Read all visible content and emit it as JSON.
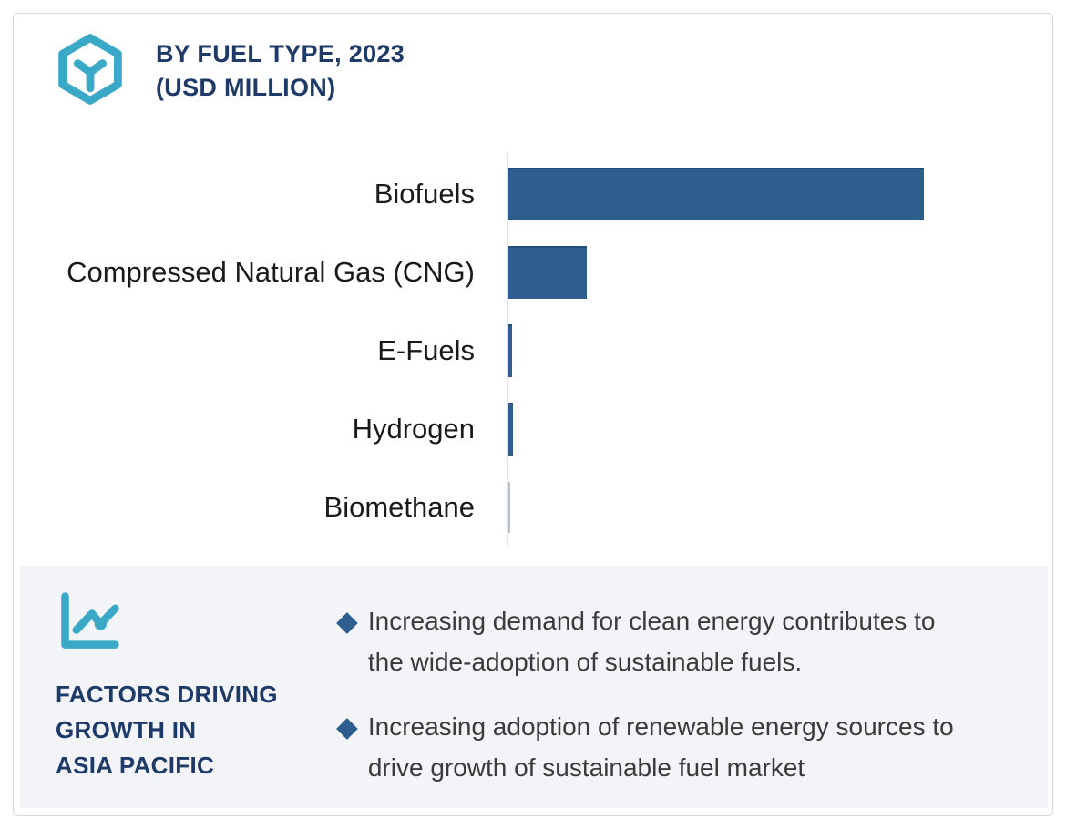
{
  "header": {
    "title_line1": "BY FUEL TYPE, 2023",
    "title_line2": "(USD MILLION)"
  },
  "chart_data": {
    "type": "bar",
    "orientation": "horizontal",
    "title": "BY FUEL TYPE, 2023 (USD MILLION)",
    "categories": [
      "Biofuels",
      "Compressed Natural Gas (CNG)",
      "E-Fuels",
      "Hydrogen",
      "Biomethane"
    ],
    "values_relative_pct_of_max": [
      100,
      18.9,
      0.9,
      1.1,
      0.4
    ],
    "value_labels_shown": false,
    "axis_tick_labels_shown": false,
    "grid": false,
    "legend": "none",
    "note": "no numeric scale or data labels are visible; values estimated from relative bar lengths, Biofuels = 100"
  },
  "factors_panel": {
    "heading_lines": [
      "FACTORS DRIVING",
      "GROWTH IN",
      "ASIA PACIFIC"
    ],
    "bullet_marker": "◆",
    "bullets": [
      "Increasing demand for clean energy contributes to\nthe wide-adoption of sustainable fuels.",
      "Increasing adoption of renewable energy sources to\ndrive growth of sustainable fuel market"
    ]
  },
  "colors": {
    "bar_blue": "#2d5e8d",
    "bar_top_edge": "#1f4e7d",
    "biomethane_bar": "#b6c2cf",
    "accent_teal": "#3aa9c8",
    "heading_navy": "#1e3a68",
    "panel_background": "#f3f4f8",
    "body_text": "#3b3b3b",
    "axis_line": "#e1e3e7",
    "card_border": "#d8d8d8"
  }
}
